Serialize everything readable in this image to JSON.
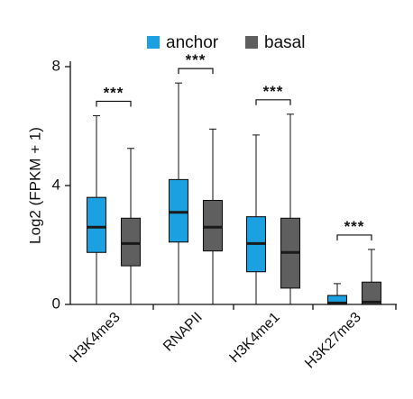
{
  "chart_data": {
    "type": "box",
    "ylabel": "Log2 (FPKM + 1)",
    "ylim": [
      0,
      8
    ],
    "yticks": [
      0,
      4,
      8
    ],
    "categories": [
      "H3K4me3",
      "RNAPII",
      "H3K4me1",
      "H3K27me3"
    ],
    "legend_position": "top",
    "series": [
      {
        "name": "anchor",
        "color": "#1BA1E2",
        "boxes": [
          {
            "min": 0.0,
            "q1": 1.75,
            "median": 2.6,
            "q3": 3.6,
            "max": 6.35
          },
          {
            "min": 0.0,
            "q1": 2.1,
            "median": 3.1,
            "q3": 4.2,
            "max": 7.45
          },
          {
            "min": 0.0,
            "q1": 1.1,
            "median": 2.05,
            "q3": 2.95,
            "max": 5.7
          },
          {
            "min": 0.0,
            "q1": 0.0,
            "median": 0.05,
            "q3": 0.3,
            "max": 0.7
          }
        ]
      },
      {
        "name": "basal",
        "color": "#5F5F5F",
        "boxes": [
          {
            "min": 0.0,
            "q1": 1.3,
            "median": 2.05,
            "q3": 2.9,
            "max": 5.25
          },
          {
            "min": 0.0,
            "q1": 1.8,
            "median": 2.6,
            "q3": 3.5,
            "max": 5.9
          },
          {
            "min": 0.0,
            "q1": 0.55,
            "median": 1.75,
            "q3": 2.9,
            "max": 6.4
          },
          {
            "min": 0.0,
            "q1": 0.0,
            "median": 0.08,
            "q3": 0.75,
            "max": 1.85
          }
        ]
      }
    ],
    "significance": [
      "***",
      "***",
      "***",
      "***"
    ]
  }
}
